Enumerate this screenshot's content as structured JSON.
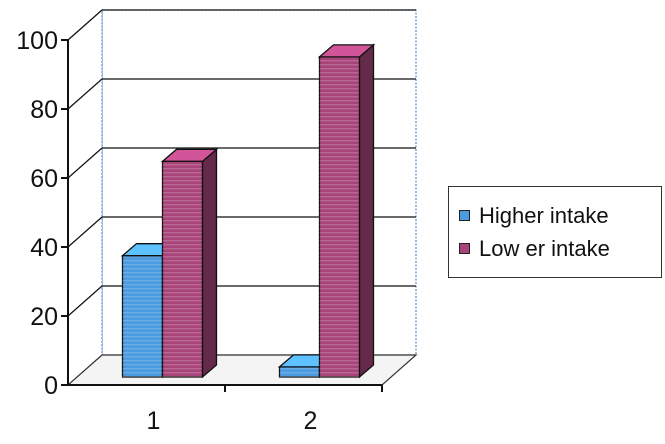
{
  "chart_data": {
    "type": "bar",
    "categories": [
      "1",
      "2"
    ],
    "series": [
      {
        "name": "Higher intake",
        "values": [
          36,
          3
        ],
        "color": "#4a9be0"
      },
      {
        "name": "Low er intake",
        "values": [
          64,
          95
        ],
        "color": "#a8447a"
      }
    ],
    "ylim": [
      0,
      100
    ],
    "yticks": [
      0,
      20,
      40,
      60,
      80,
      100
    ],
    "grid": true,
    "legend_position": "right",
    "style": "3d-clustered-column"
  }
}
